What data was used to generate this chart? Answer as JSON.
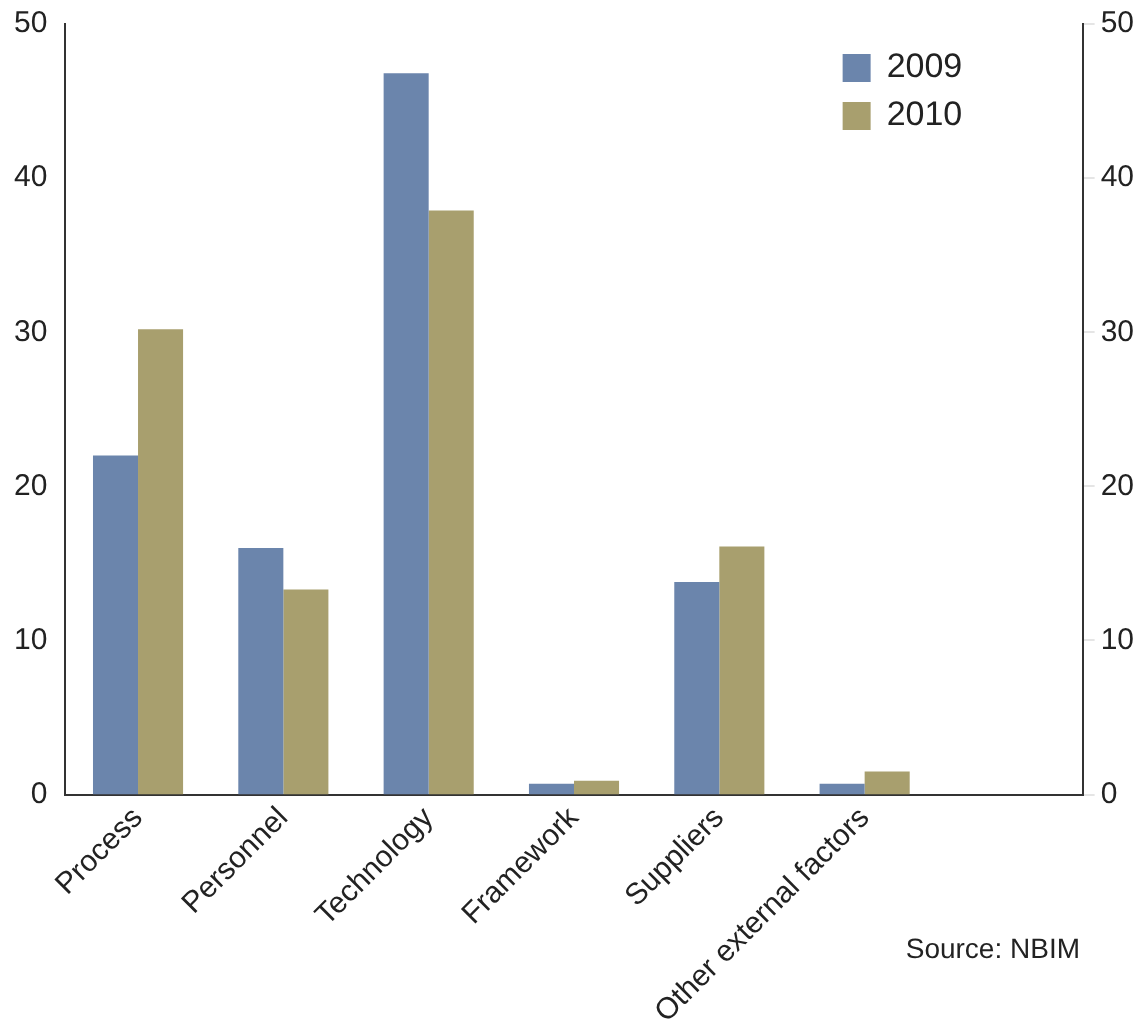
{
  "chart_data": {
    "type": "bar",
    "categories": [
      "Process",
      "Personnel",
      "Technology",
      "Framework",
      "Suppliers",
      "Other external factors",
      null
    ],
    "series": [
      {
        "name": "2009",
        "color": "#6b85ac",
        "values": [
          22,
          16,
          46.8,
          0.7,
          13.8,
          0.7,
          null
        ]
      },
      {
        "name": "2010",
        "color": "#a89f6e",
        "values": [
          30.2,
          13.3,
          37.9,
          0.9,
          16.1,
          1.5,
          null
        ]
      }
    ],
    "ylim": [
      0,
      50
    ],
    "yticks": [
      0,
      10,
      20,
      30,
      40,
      50
    ],
    "y2lim": [
      0,
      50
    ],
    "y2ticks": [
      0,
      10,
      20,
      30,
      40,
      50
    ],
    "grid": false,
    "legend": "top right",
    "annotations": [
      "Source: NBIM"
    ]
  }
}
